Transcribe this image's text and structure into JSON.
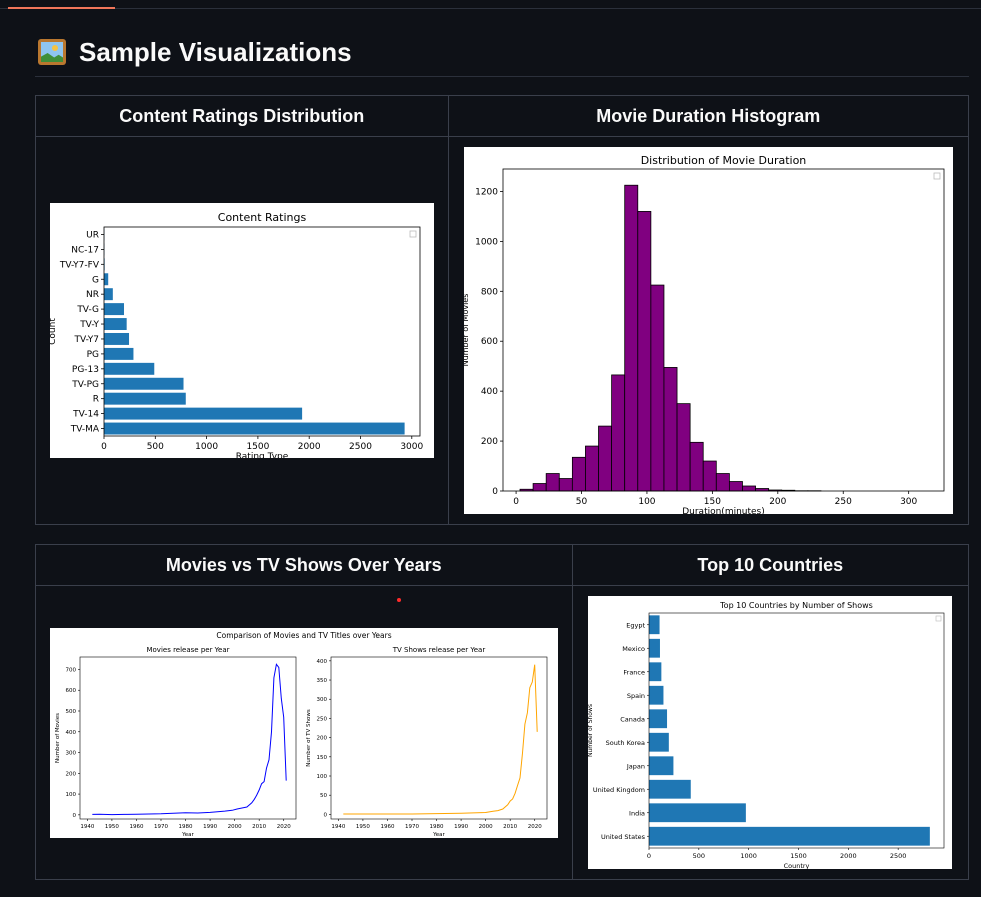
{
  "header": {
    "title": "Sample Visualizations",
    "icon": "framed-picture-icon"
  },
  "colors": {
    "background": "#0e1117",
    "accent": "#f0765a",
    "bar_blue": "#1f77b4",
    "purple": "#800080",
    "orange": "#ffa500",
    "line_blue": "#0000ff"
  },
  "table1": {
    "headers": [
      "Content Ratings Distribution",
      "Movie Duration Histogram"
    ]
  },
  "table2": {
    "headers": [
      "Movies vs TV Shows Over Years",
      "Top 10 Countries"
    ]
  },
  "chart_data": [
    {
      "type": "bar",
      "orientation": "horizontal",
      "title": "Content Ratings",
      "xlabel": "Rating Type",
      "ylabel": "Count",
      "categories": [
        "TV-MA",
        "TV-14",
        "R",
        "TV-PG",
        "PG-13",
        "PG",
        "TV-Y7",
        "TV-Y",
        "TV-G",
        "NR",
        "G",
        "TV-Y7-FV",
        "NC-17",
        "UR"
      ],
      "values": [
        2930,
        1931,
        797,
        775,
        490,
        287,
        244,
        221,
        195,
        86,
        41,
        6,
        3,
        3
      ],
      "xticks": [
        0,
        500,
        1000,
        1500,
        2000,
        2500,
        3000
      ],
      "xlim": [
        0,
        3080
      ],
      "legend": "top-right (empty)"
    },
    {
      "type": "bar",
      "title": "Distribution of Movie Duration",
      "xlabel": "Duration(minutes)",
      "ylabel": "Number of Movies",
      "bin_start": 3,
      "bin_width": 10,
      "values": [
        7,
        30,
        70,
        50,
        135,
        180,
        260,
        465,
        1225,
        1120,
        825,
        495,
        350,
        195,
        120,
        70,
        38,
        20,
        10,
        4,
        3,
        1,
        1
      ],
      "xticks": [
        0,
        50,
        100,
        150,
        200,
        250,
        300
      ],
      "yticks": [
        0,
        200,
        400,
        600,
        800,
        1000,
        1200
      ],
      "xlim": [
        -10,
        327
      ],
      "ylim": [
        0,
        1290
      ],
      "legend": "top-right (empty)"
    },
    {
      "type": "line",
      "title": "Comparison of Movies and TV Titles over Years",
      "panels": [
        {
          "title": "Movies release per Year",
          "xlabel": "Year",
          "ylabel": "Number of Movies",
          "x": [
            1942,
            1945,
            1950,
            1955,
            1960,
            1965,
            1970,
            1975,
            1980,
            1985,
            1990,
            1993,
            1996,
            1999,
            2001,
            2003,
            2005,
            2007,
            2008,
            2009,
            2010,
            2011,
            2012,
            2013,
            2014,
            2015,
            2016,
            2017,
            2018,
            2019,
            2020,
            2021
          ],
          "y": [
            2,
            3,
            1,
            2,
            3,
            4,
            5,
            8,
            10,
            9,
            12,
            15,
            18,
            22,
            28,
            33,
            38,
            58,
            75,
            95,
            120,
            150,
            160,
            225,
            265,
            400,
            660,
            725,
            710,
            560,
            470,
            165
          ],
          "xticks": [
            1940,
            1950,
            1960,
            1970,
            1980,
            1990,
            2000,
            2010,
            2020
          ],
          "yticks": [
            0,
            100,
            200,
            300,
            400,
            500,
            600,
            700
          ],
          "xlim": [
            1937,
            2025
          ],
          "ylim": [
            -20,
            760
          ],
          "color": "#0000ff"
        },
        {
          "title": "TV Shows release per Year",
          "xlabel": "Year",
          "ylabel": "Number of TV Shows",
          "x": [
            1942,
            1950,
            1960,
            1970,
            1980,
            1990,
            1995,
            2000,
            2003,
            2005,
            2007,
            2009,
            2010,
            2011,
            2012,
            2013,
            2014,
            2015,
            2016,
            2017,
            2018,
            2019,
            2020,
            2021
          ],
          "y": [
            1,
            1,
            1,
            1,
            2,
            3,
            4,
            5,
            8,
            10,
            14,
            25,
            35,
            40,
            55,
            75,
            95,
            160,
            235,
            265,
            330,
            345,
            390,
            215
          ],
          "xticks": [
            1940,
            1950,
            1960,
            1970,
            1980,
            1990,
            2000,
            2010,
            2020
          ],
          "yticks": [
            0,
            50,
            100,
            150,
            200,
            250,
            300,
            350,
            400
          ],
          "xlim": [
            1937,
            2025
          ],
          "ylim": [
            -12,
            410
          ],
          "color": "#ffa500"
        }
      ]
    },
    {
      "type": "bar",
      "orientation": "horizontal",
      "title": "Top 10 Countries by Number of Shows",
      "xlabel": "Country",
      "ylabel": "Number of Shows",
      "categories": [
        "United States",
        "India",
        "United Kingdom",
        "Japan",
        "South Korea",
        "Canada",
        "Spain",
        "France",
        "Mexico",
        "Egypt"
      ],
      "values": [
        2818,
        972,
        419,
        245,
        199,
        181,
        145,
        124,
        110,
        106
      ],
      "xticks": [
        0,
        500,
        1000,
        1500,
        2000,
        2500
      ],
      "xlim": [
        0,
        2960
      ],
      "legend": "top-right (empty)"
    }
  ]
}
